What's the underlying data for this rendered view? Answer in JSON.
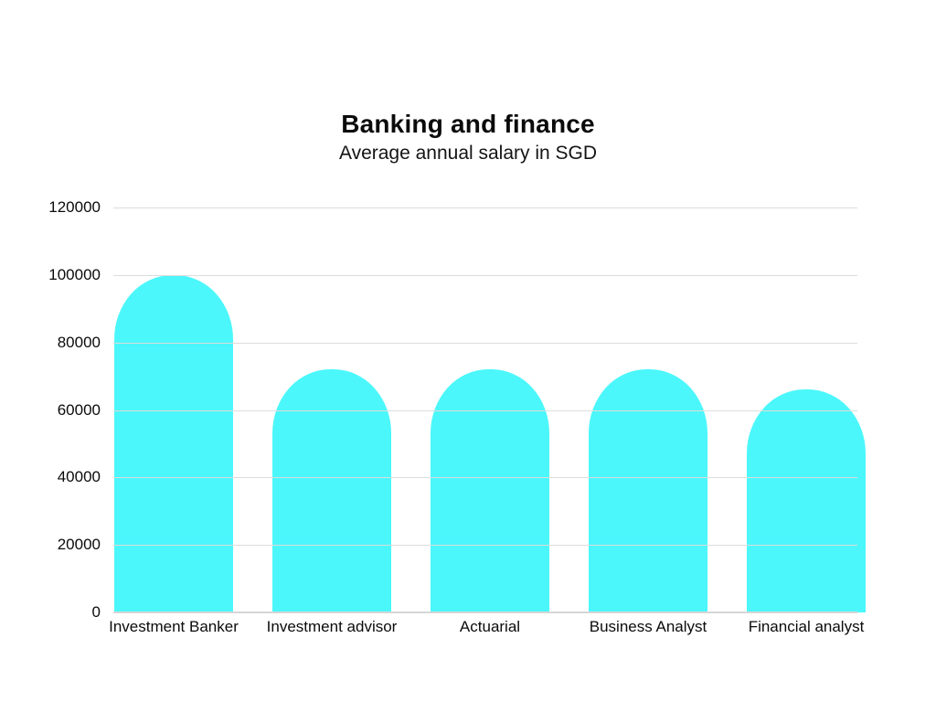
{
  "chart_data": {
    "type": "bar",
    "title": "Banking and finance",
    "subtitle": "Average annual salary in SGD",
    "categories": [
      "Investment Banker",
      "Investment advisor",
      "Actuarial",
      "Business Analyst",
      "Financial analyst"
    ],
    "values": [
      100000,
      72000,
      72000,
      72000,
      66000
    ],
    "xlabel": "",
    "ylabel": "",
    "ylim": [
      0,
      120000
    ],
    "yticks": [
      0,
      20000,
      40000,
      60000,
      80000,
      100000,
      120000
    ],
    "grid": true,
    "legend_position": "none",
    "colors": {
      "bar": "#4bf7fb",
      "gridline": "#dcdcdc",
      "axis_line": "#d6d6d6",
      "text": "#0b0b0b",
      "background": "#ffffff"
    }
  }
}
